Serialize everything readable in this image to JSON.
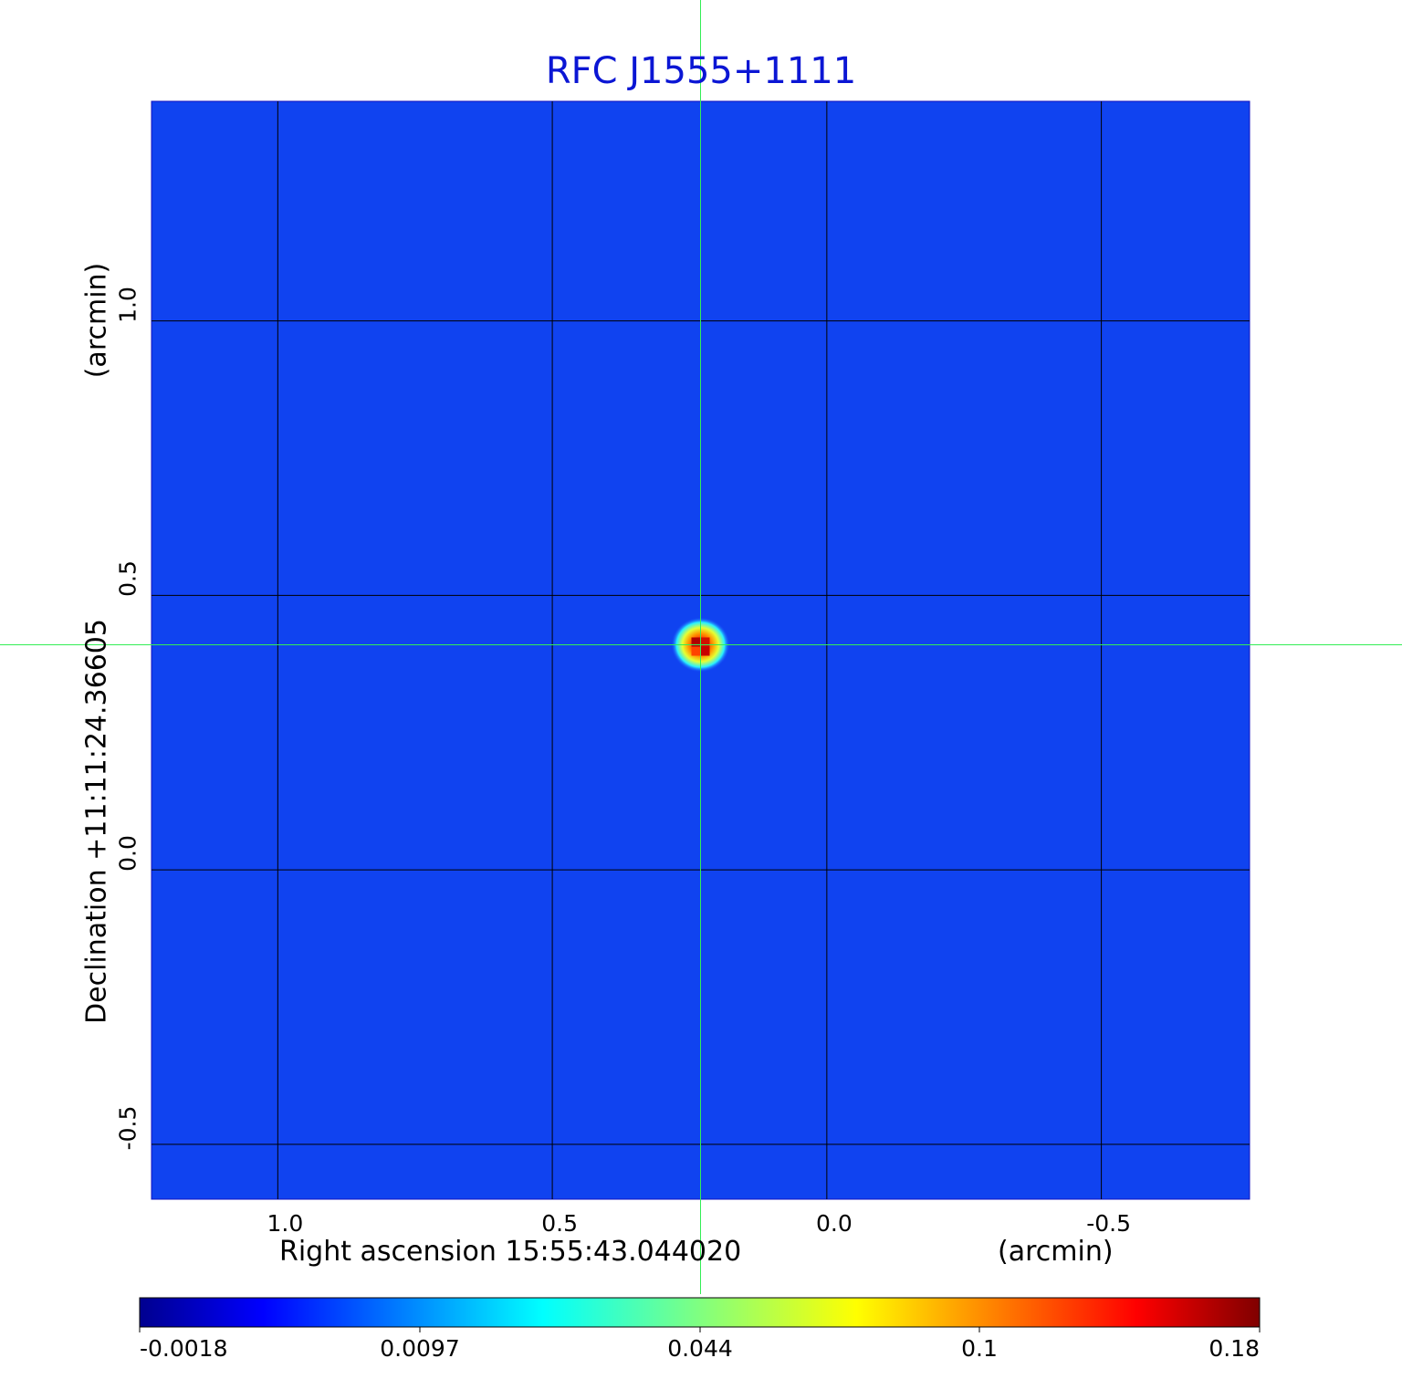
{
  "chart_data": {
    "type": "heatmap",
    "title": "RFC J1555+1111",
    "xlabel": "Right ascension  15:55:43.044020",
    "xlabel_unit": "(arcmin)",
    "ylabel": "Declination  +11:11:24.36605",
    "ylabel_unit": "(arcmin)",
    "x_ticks": [
      "1.0",
      "0.5",
      "0.0",
      "-0.5"
    ],
    "x_tick_values": [
      1.0,
      0.5,
      0.0,
      -0.5
    ],
    "y_ticks": [
      "1.0",
      "0.5",
      "0.0",
      "-0.5"
    ],
    "y_tick_values": [
      1.0,
      0.5,
      0.0,
      -0.5
    ],
    "xlim": [
      1.23,
      -0.77
    ],
    "ylim": [
      -0.6,
      1.4
    ],
    "grid": true,
    "colormap": "jet",
    "colorbar": {
      "ticks": [
        "-0.0018",
        "0.0097",
        "0.044",
        "0.1",
        "0.18"
      ],
      "tick_values": [
        -0.0018,
        0.0097,
        0.044,
        0.1,
        0.18
      ],
      "range": [
        -0.0018,
        0.18
      ]
    },
    "background_value": 0.005,
    "source": {
      "x": 0.23,
      "y": 0.41,
      "peak": 0.18
    },
    "crosshair": {
      "x": 0.23,
      "y": 0.41
    }
  }
}
